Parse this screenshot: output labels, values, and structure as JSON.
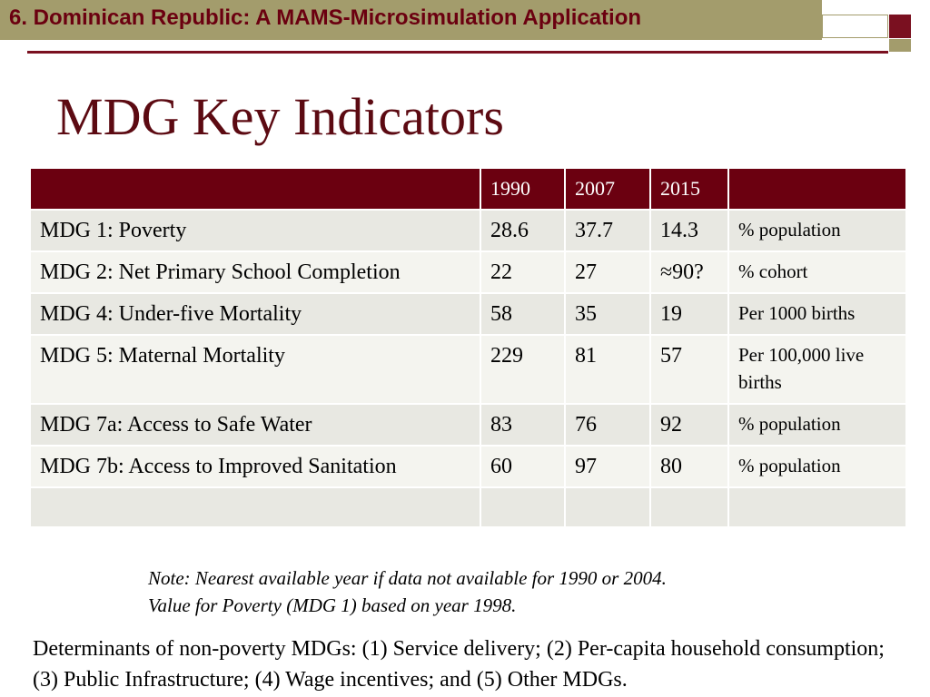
{
  "header": {
    "title": "6. Dominican Republic: A MAMS-Microsimulation Application"
  },
  "slide": {
    "title": "MDG Key Indicators"
  },
  "table": {
    "columns": [
      "",
      "1990",
      "2007",
      "2015",
      ""
    ],
    "rows": [
      {
        "indicator": "MDG 1: Poverty",
        "y1990": "28.6",
        "y2007": "37.7",
        "y2015": "14.3",
        "unit": "% population"
      },
      {
        "indicator": "MDG 2: Net Primary School Completion",
        "y1990": "22",
        "y2007": "27",
        "y2015": "≈90?",
        "unit": "% cohort"
      },
      {
        "indicator": "MDG 4: Under-five Mortality",
        "y1990": "58",
        "y2007": "35",
        "y2015": "19",
        "unit": "Per 1000 births"
      },
      {
        "indicator": "MDG 5: Maternal Mortality",
        "y1990": "229",
        "y2007": "81",
        "y2015": "57",
        "unit": "Per 100,000 live births"
      },
      {
        "indicator": "MDG 7a: Access to Safe Water",
        "y1990": "83",
        "y2007": "76",
        "y2015": "92",
        "unit": "% population"
      },
      {
        "indicator": "MDG 7b: Access to Improved Sanitation",
        "y1990": "60",
        "y2007": "97",
        "y2015": "80",
        "unit": "% population"
      }
    ]
  },
  "note": {
    "line1": "Note: Nearest available year if data not available for 1990 or 2004.",
    "line2": "Value for Poverty (MDG 1) based on year 1998."
  },
  "determinants": "Determinants of non-poverty MDGs: (1) Service delivery; (2) Per-capita household consumption; (3) Public Infrastructure; (4) Wage incentives; and (5) Other MDGs.",
  "colors": {
    "accent": "#6b0010",
    "banner": "#a39c6c"
  }
}
